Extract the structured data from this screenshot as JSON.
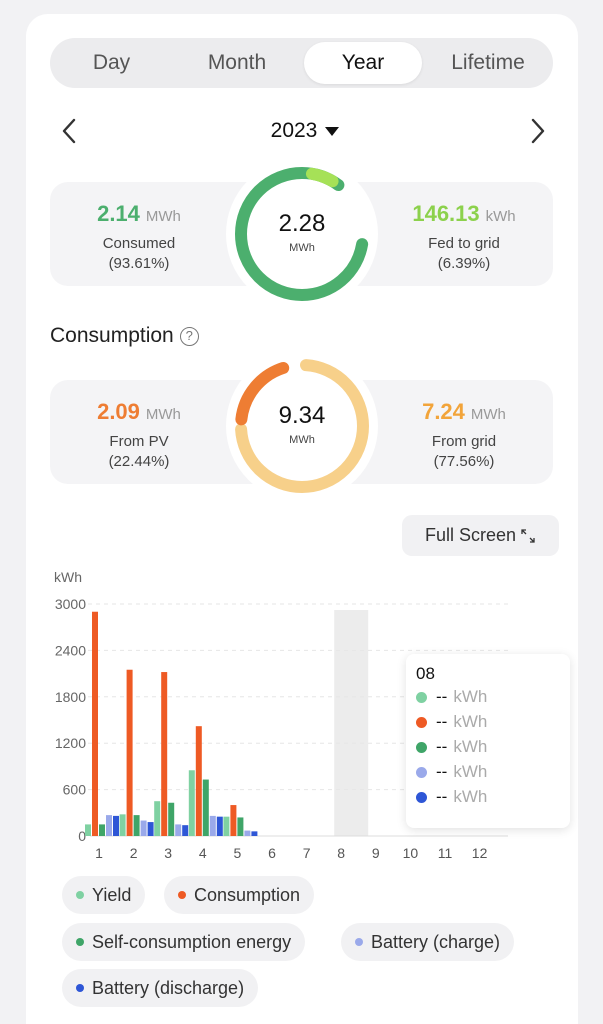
{
  "tabs": [
    {
      "label": "Day",
      "active": false
    },
    {
      "label": "Month",
      "active": false
    },
    {
      "label": "Year",
      "active": true
    },
    {
      "label": "Lifetime",
      "active": false
    }
  ],
  "period": {
    "selected": "2023"
  },
  "energy_summary": {
    "left": {
      "value": "2.14",
      "unit": "MWh",
      "label": "Consumed",
      "percent": "(93.61%)",
      "color": "#4caf6e"
    },
    "center": {
      "value": "2.28",
      "unit": "MWh"
    },
    "right": {
      "value": "146.13",
      "unit": "kWh",
      "label": "Fed to grid",
      "percent": "(6.39%)",
      "color": "#8cd14c"
    }
  },
  "consumption": {
    "title": "Consumption",
    "left": {
      "value": "2.09",
      "unit": "MWh",
      "label": "From PV",
      "percent": "(22.44%)",
      "color": "#ee7d33"
    },
    "center": {
      "value": "9.34",
      "unit": "MWh"
    },
    "right": {
      "value": "7.24",
      "unit": "MWh",
      "label": "From grid",
      "percent": "(77.56%)",
      "color": "#f2a43a"
    }
  },
  "full_screen_label": "Full Screen",
  "chart_data": {
    "type": "bar",
    "ylabel": "kWh",
    "ylim": [
      0,
      3000
    ],
    "yticks": [
      0,
      600,
      1200,
      1800,
      2400,
      3000
    ],
    "categories": [
      "1",
      "2",
      "3",
      "4",
      "5",
      "6",
      "7",
      "8",
      "9",
      "10",
      "11",
      "12"
    ],
    "highlighted_category": "8",
    "series": [
      {
        "name": "Yield",
        "color": "#7fd1a2",
        "values": [
          150,
          280,
          450,
          850,
          250,
          0,
          0,
          0,
          0,
          0,
          0,
          0
        ]
      },
      {
        "name": "Consumption",
        "color": "#ee5a24",
        "values": [
          2900,
          2150,
          2120,
          1420,
          400,
          0,
          0,
          0,
          0,
          0,
          0,
          0
        ]
      },
      {
        "name": "Self-consumption energy",
        "color": "#3fa568",
        "values": [
          150,
          270,
          430,
          730,
          240,
          0,
          0,
          0,
          0,
          0,
          0,
          0
        ]
      },
      {
        "name": "Battery (charge)",
        "color": "#9aa9ea",
        "values": [
          270,
          200,
          150,
          260,
          70,
          0,
          0,
          0,
          0,
          0,
          0,
          0
        ]
      },
      {
        "name": "Battery (discharge)",
        "color": "#2e56d6",
        "values": [
          260,
          180,
          140,
          250,
          60,
          0,
          0,
          0,
          0,
          0,
          0,
          0
        ]
      }
    ]
  },
  "tooltip": {
    "title": "08",
    "rows": [
      {
        "value": "--",
        "unit": "kWh",
        "color": "#7fd1a2"
      },
      {
        "value": "--",
        "unit": "kWh",
        "color": "#ee5a24"
      },
      {
        "value": "--",
        "unit": "kWh",
        "color": "#3fa568"
      },
      {
        "value": "--",
        "unit": "kWh",
        "color": "#9aa9ea"
      },
      {
        "value": "--",
        "unit": "kWh",
        "color": "#2e56d6"
      }
    ]
  },
  "legend": [
    {
      "label": "Yield",
      "color": "#7fd1a2"
    },
    {
      "label": "Consumption",
      "color": "#ee5a24"
    },
    {
      "label": "Self-consumption energy",
      "color": "#3fa568"
    },
    {
      "label": "Battery (charge)",
      "color": "#9aa9ea"
    },
    {
      "label": "Battery (discharge)",
      "color": "#2e56d6"
    }
  ]
}
